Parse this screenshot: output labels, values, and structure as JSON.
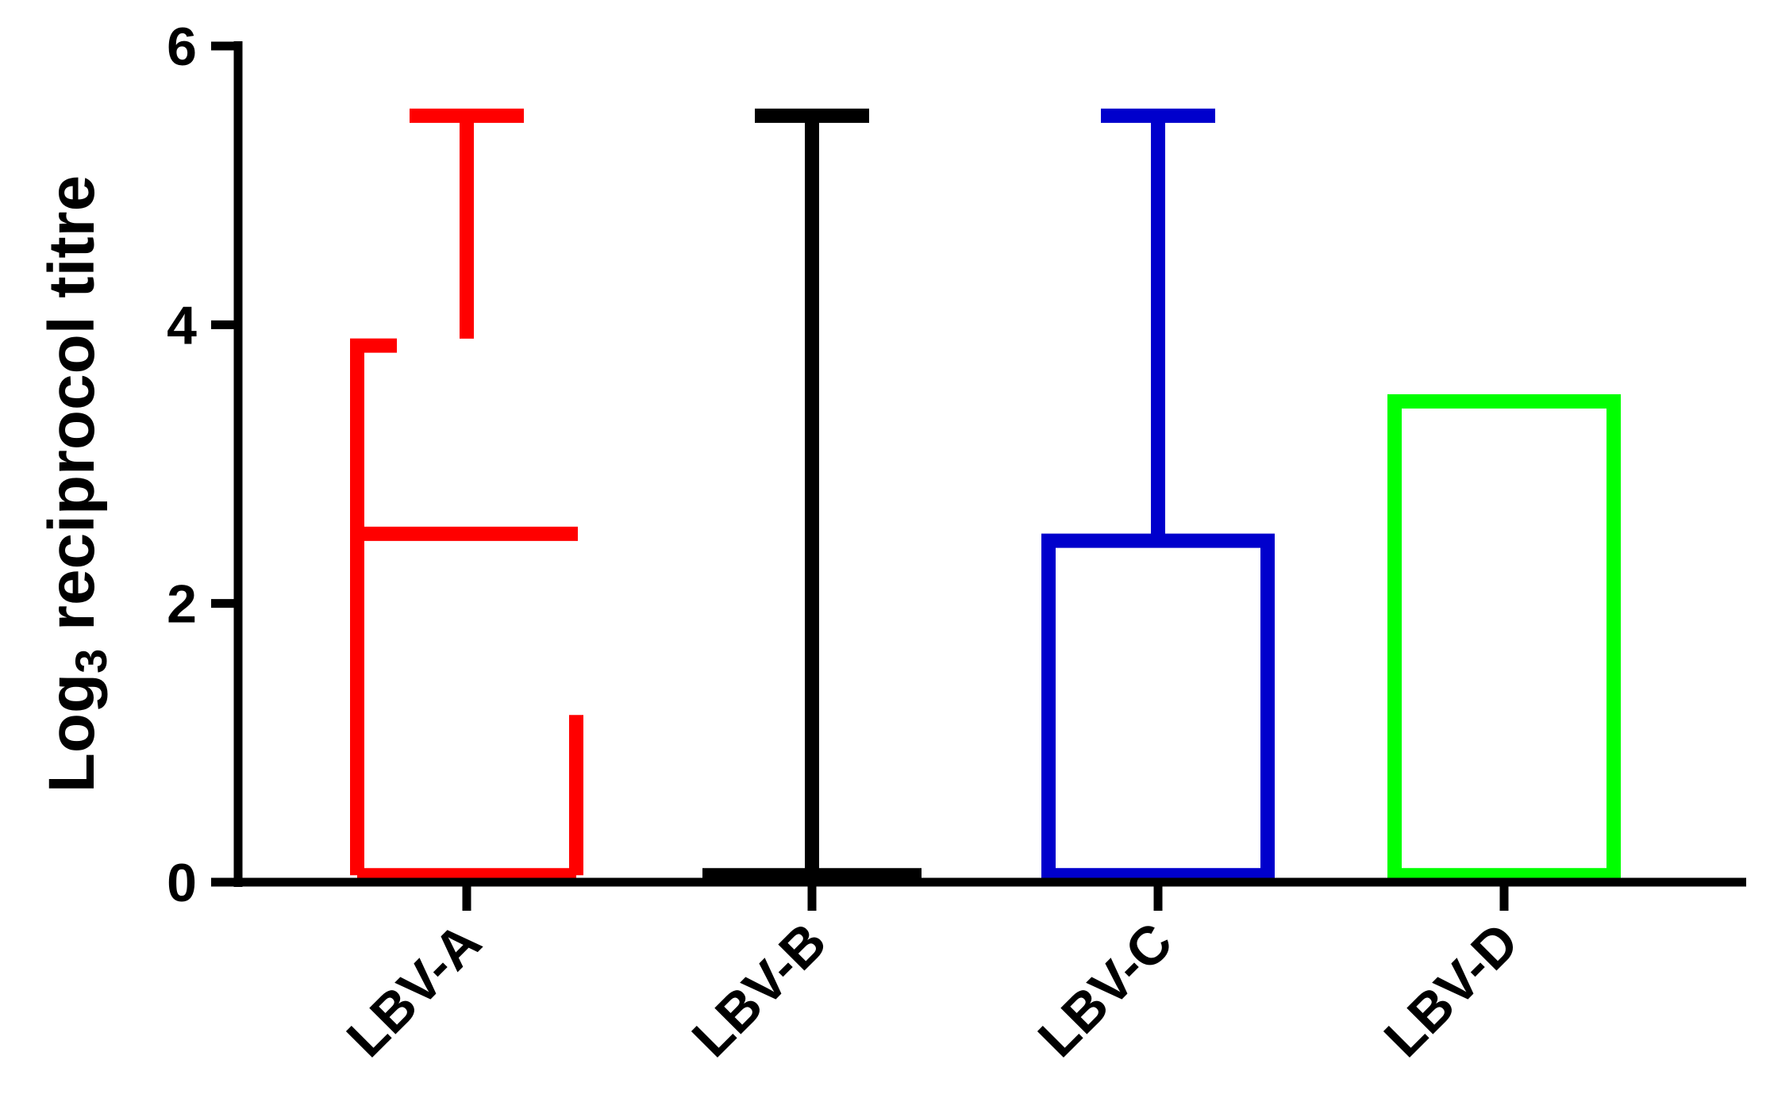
{
  "chart_data": {
    "type": "bar",
    "ylabel": {
      "main": "Log",
      "sub": "3",
      "rest": " reciprocol titre"
    },
    "ylim": [
      0,
      6
    ],
    "yticks": [
      0,
      2,
      4,
      6
    ],
    "categories": [
      "LBV-A",
      "LBV-B",
      "LBV-C",
      "LBV-D"
    ],
    "series": [
      {
        "category": "LBV-A",
        "color": "#ff0000",
        "value": 2.5,
        "error_upper": 5.5,
        "y_min": 0.05,
        "y_max_left": 3.85,
        "y_right_top": 1.2,
        "cap_gap_value": 3.9
      },
      {
        "category": "LBV-B",
        "color": "#000000",
        "value": 0.05,
        "error_upper": 5.5
      },
      {
        "category": "LBV-C",
        "color": "#0000cc",
        "value": 2.45,
        "error_upper": 5.5
      },
      {
        "category": "LBV-D",
        "color": "#00ff00",
        "value": 3.45,
        "error_upper": null
      }
    ],
    "grid": false,
    "legend": "none"
  }
}
